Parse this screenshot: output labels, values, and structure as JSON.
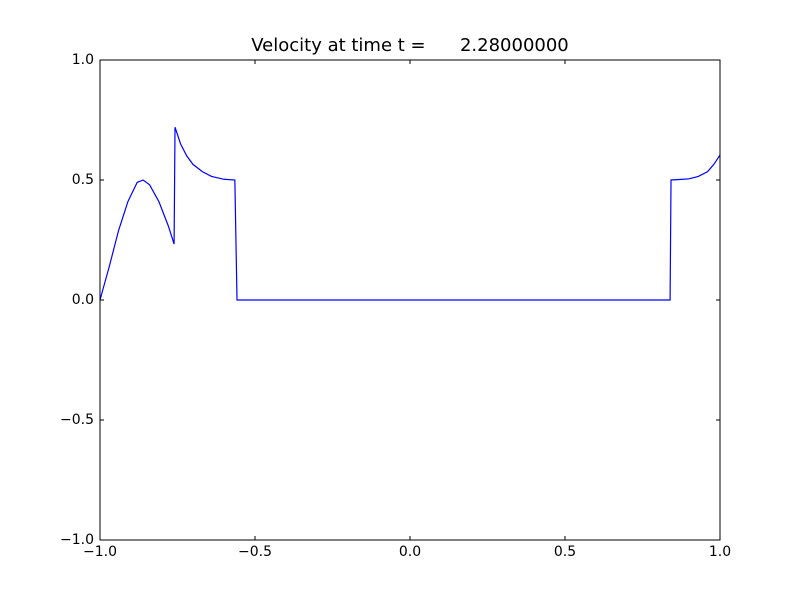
{
  "chart_data": {
    "type": "line",
    "title": "Velocity at time t =      2.28000000",
    "x": [
      -1,
      -0.97,
      -0.94,
      -0.91,
      -0.88,
      -0.861,
      -0.84,
      -0.81,
      -0.78,
      -0.761,
      -0.758,
      -0.74,
      -0.72,
      -0.7,
      -0.67,
      -0.64,
      -0.6,
      -0.565,
      -0.558,
      0.839,
      0.842,
      0.87,
      0.9,
      0.93,
      0.96,
      0.98,
      1.0
    ],
    "series": [
      {
        "color": "#0000ff",
        "values": [
          0,
          0.14,
          0.29,
          0.41,
          0.49,
          0.5,
          0.48,
          0.41,
          0.31,
          0.233,
          0.72,
          0.65,
          0.6,
          0.565,
          0.535,
          0.515,
          0.503,
          0.5,
          0,
          0,
          0.5,
          0.502,
          0.505,
          0.515,
          0.535,
          0.565,
          0.604
        ]
      }
    ],
    "xlim": [
      -1,
      1
    ],
    "ylim": [
      -1,
      1
    ],
    "xticks": [
      {
        "value": -1,
        "label": "−1.0"
      },
      {
        "value": -0.5,
        "label": "−0.5"
      },
      {
        "value": 0,
        "label": "0.0"
      },
      0.5,
      {
        "value": 1,
        "label": "1.0"
      }
    ],
    "yticks": [
      {
        "value": -1,
        "label": "−1.0"
      },
      {
        "value": -0.5,
        "label": "−0.5"
      },
      {
        "value": 0,
        "label": "0.0"
      },
      0.5,
      {
        "value": 1,
        "label": "1.0"
      }
    ],
    "grid": false
  }
}
